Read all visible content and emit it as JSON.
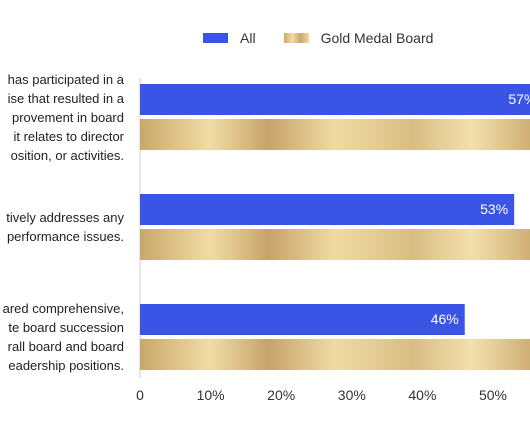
{
  "chart_data": {
    "type": "bar",
    "orientation": "horizontal",
    "categories": [
      [
        "has participated in a",
        "ise that resulted in a",
        "provement in board",
        "it relates to director",
        "osition, or activities."
      ],
      [
        "tively addresses any",
        "performance issues."
      ],
      [
        "ared comprehensive,",
        "te board succession",
        "rall board and board",
        "eadership positions."
      ]
    ],
    "series": [
      {
        "name": "All",
        "values": [
          57,
          53,
          46
        ],
        "labels": [
          "57%",
          "53%",
          "46%"
        ]
      },
      {
        "name": "Gold Medal Board",
        "values": [
          null,
          null,
          null
        ]
      }
    ],
    "x_ticks": [
      "0",
      "10%",
      "20%",
      "30%",
      "40%",
      "50%"
    ],
    "xlim": [
      0,
      55
    ],
    "colors": {
      "all": "#3a54e6",
      "gold_dark": "#c9a86a",
      "gold_light": "#f1dca6",
      "axis": "#cccccc"
    }
  }
}
